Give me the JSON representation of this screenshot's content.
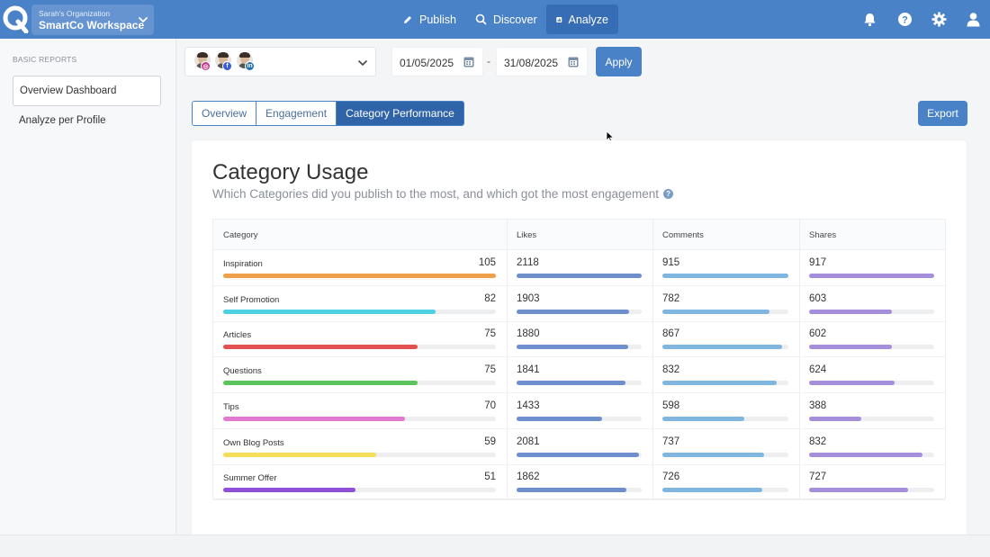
{
  "header": {
    "org_sub": "Sarah's Organization",
    "org_name": "SmartCo Workspace",
    "nav": [
      {
        "label": "Publish",
        "icon": "pencil-icon"
      },
      {
        "label": "Discover",
        "icon": "search-icon"
      },
      {
        "label": "Analyze",
        "icon": "chart-icon",
        "active": true
      }
    ],
    "icons": [
      "bell-icon",
      "help-icon",
      "gear-icon",
      "user-icon"
    ]
  },
  "sidebar": {
    "heading": "BASIC REPORTS",
    "items": [
      {
        "label": "Overview Dashboard",
        "active": true
      },
      {
        "label": "Analyze per Profile"
      }
    ]
  },
  "filters": {
    "profiles": [
      "instagram",
      "facebook",
      "linkedin"
    ],
    "date_from": "01/05/2025",
    "separator": "-",
    "date_to": "31/08/2025",
    "apply_label": "Apply"
  },
  "tabs": [
    {
      "label": "Overview"
    },
    {
      "label": "Engagement"
    },
    {
      "label": "Category Performance",
      "active": true
    }
  ],
  "export_label": "Export",
  "card": {
    "title": "Category Usage",
    "subtitle": "Which Categories did you publish to the most, and which got the most engagement",
    "columns": [
      "Category",
      "Likes",
      "Comments",
      "Shares"
    ]
  },
  "colors": {
    "likes": "#6d8fcb",
    "comments": "#7eb6df",
    "shares": "#a58fdb"
  },
  "rows": [
    {
      "category": "Inspiration",
      "count": "105",
      "color": "#f0a04b",
      "likes": "2118",
      "comments": "915",
      "shares": "917",
      "count_frac": 1.0,
      "likes_frac": 1.0,
      "comments_frac": 1.0,
      "shares_frac": 1.0
    },
    {
      "category": "Self Promotion",
      "count": "82",
      "color": "#4dd0e1",
      "likes": "1903",
      "comments": "782",
      "shares": "603",
      "count_frac": 0.78,
      "likes_frac": 0.9,
      "comments_frac": 0.85,
      "shares_frac": 0.66
    },
    {
      "category": "Articles",
      "count": "75",
      "color": "#e25050",
      "likes": "1880",
      "comments": "867",
      "shares": "602",
      "count_frac": 0.714,
      "likes_frac": 0.89,
      "comments_frac": 0.95,
      "shares_frac": 0.66
    },
    {
      "category": "Questions",
      "count": "75",
      "color": "#5cc45c",
      "likes": "1841",
      "comments": "832",
      "shares": "624",
      "count_frac": 0.714,
      "likes_frac": 0.87,
      "comments_frac": 0.91,
      "shares_frac": 0.68
    },
    {
      "category": "Tips",
      "count": "70",
      "color": "#e07ad0",
      "likes": "1433",
      "comments": "598",
      "shares": "388",
      "count_frac": 0.667,
      "likes_frac": 0.68,
      "comments_frac": 0.65,
      "shares_frac": 0.42
    },
    {
      "category": "Own Blog Posts",
      "count": "59",
      "color": "#f5dd5a",
      "likes": "2081",
      "comments": "737",
      "shares": "832",
      "count_frac": 0.562,
      "likes_frac": 0.98,
      "comments_frac": 0.81,
      "shares_frac": 0.91
    },
    {
      "category": "Summer Offer",
      "count": "51",
      "color": "#8f4fd6",
      "likes": "1862",
      "comments": "726",
      "shares": "727",
      "count_frac": 0.486,
      "likes_frac": 0.88,
      "comments_frac": 0.79,
      "shares_frac": 0.79
    }
  ]
}
